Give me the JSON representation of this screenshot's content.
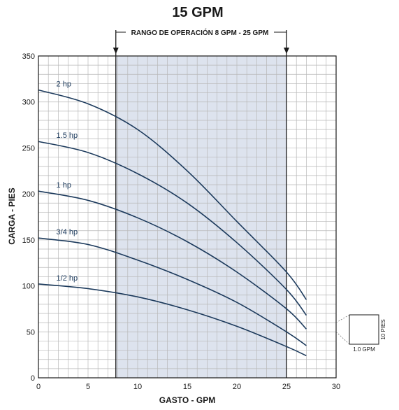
{
  "chart_data": {
    "type": "line",
    "title": "15 GPM",
    "xlabel": "GASTO - GPM",
    "ylabel": "CARGA - PIES",
    "xlim": [
      0,
      30
    ],
    "ylim": [
      0,
      350
    ],
    "x_ticks": [
      0,
      5,
      10,
      15,
      20,
      25,
      30
    ],
    "y_ticks": [
      0,
      50,
      100,
      150,
      200,
      250,
      300,
      350
    ],
    "grid": true,
    "operating_range": {
      "label": "RANGO DE OPERACIÓN 8 GPM - 25 GPM",
      "x_min": 7.8,
      "x_max": 25
    },
    "scale_box": {
      "width_label": "1.0 GPM",
      "height_label": "10 PIES"
    },
    "series": [
      {
        "name": "2 hp",
        "x": [
          0,
          5,
          10,
          15,
          20,
          25,
          27
        ],
        "y": [
          313,
          298,
          270,
          225,
          170,
          115,
          85
        ]
      },
      {
        "name": "1.5 hp",
        "x": [
          0,
          5,
          10,
          15,
          20,
          25,
          27
        ],
        "y": [
          257,
          245,
          222,
          190,
          147,
          96,
          68
        ]
      },
      {
        "name": "1 hp",
        "x": [
          0,
          5,
          10,
          15,
          20,
          25,
          27
        ],
        "y": [
          203,
          193,
          174,
          148,
          115,
          75,
          53
        ]
      },
      {
        "name": "3/4 hp",
        "x": [
          0,
          5,
          10,
          15,
          20,
          25,
          27
        ],
        "y": [
          152,
          145,
          128,
          107,
          82,
          50,
          35
        ]
      },
      {
        "name": "1/2 hp",
        "x": [
          0,
          5,
          10,
          15,
          20,
          25,
          27
        ],
        "y": [
          102,
          97,
          88,
          74,
          56,
          34,
          24
        ]
      }
    ],
    "colors": {
      "line": "#1c3a5c",
      "band": "#dde3ee",
      "grid": "#b8b8b8",
      "axis": "#1a1a1a"
    }
  }
}
